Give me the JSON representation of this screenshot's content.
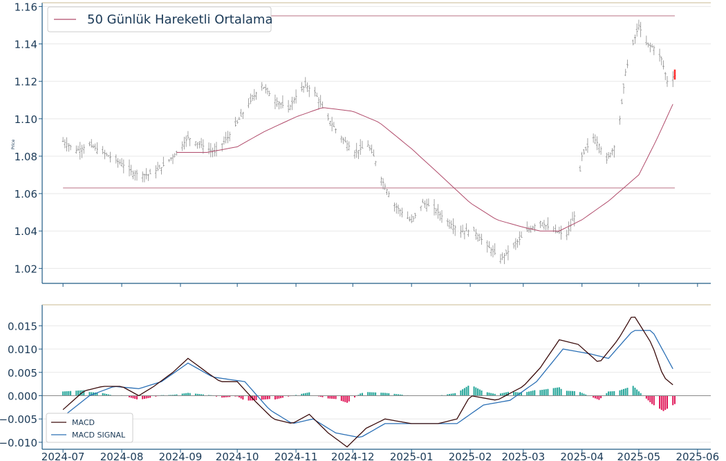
{
  "colors": {
    "axis": "#1f5a85",
    "tick_text": "#1b3a57",
    "top_border": "#c8b890",
    "grid": "#e8e8e8",
    "candle": "#8c8c8c",
    "candle_last": "#ff2a2a",
    "ma": "#b04a6a",
    "hline": "#c08090",
    "macd": "#3a0b0b",
    "signal": "#2a6fb5",
    "hist_pos": "#26a69a",
    "hist_neg": "#e0195a",
    "zero": "#888888"
  },
  "chart_data": [
    {
      "type": "ohlc",
      "ylabel": "Price",
      "ylim": [
        1.012,
        1.162
      ],
      "yticks": [
        "1.02",
        "1.04",
        "1.06",
        "1.08",
        "1.10",
        "1.12",
        "1.14",
        "1.16"
      ],
      "x_start": "2024-07-01",
      "x_end": "2025-05-20",
      "legend": {
        "position": "top-left",
        "entries": [
          "50 Günlük Hareketli Ortalama"
        ]
      },
      "horizontal_lines": [
        1.155,
        1.063
      ],
      "close_anchors": [
        [
          "2024-07-01",
          1.088
        ],
        [
          "2024-07-08",
          1.083
        ],
        [
          "2024-07-15",
          1.086
        ],
        [
          "2024-07-22",
          1.082
        ],
        [
          "2024-08-01",
          1.076
        ],
        [
          "2024-08-07",
          1.071
        ],
        [
          "2024-08-15",
          1.07
        ],
        [
          "2024-08-22",
          1.074
        ],
        [
          "2024-08-30",
          1.082
        ],
        [
          "2024-09-05",
          1.09
        ],
        [
          "2024-09-12",
          1.086
        ],
        [
          "2024-09-19",
          1.082
        ],
        [
          "2024-09-26",
          1.09
        ],
        [
          "2024-10-01",
          1.098
        ],
        [
          "2024-10-07",
          1.108
        ],
        [
          "2024-10-14",
          1.118
        ],
        [
          "2024-10-21",
          1.11
        ],
        [
          "2024-10-28",
          1.105
        ],
        [
          "2024-11-01",
          1.112
        ],
        [
          "2024-11-06",
          1.118
        ],
        [
          "2024-11-11",
          1.114
        ],
        [
          "2024-11-18",
          1.1
        ],
        [
          "2024-11-25",
          1.09
        ],
        [
          "2024-12-02",
          1.082
        ],
        [
          "2024-12-09",
          1.086
        ],
        [
          "2024-12-12",
          1.08
        ],
        [
          "2024-12-16",
          1.068
        ],
        [
          "2024-12-23",
          1.054
        ],
        [
          "2025-01-01",
          1.045
        ],
        [
          "2025-01-07",
          1.055
        ],
        [
          "2025-01-13",
          1.052
        ],
        [
          "2025-01-20",
          1.045
        ],
        [
          "2025-01-27",
          1.04
        ],
        [
          "2025-02-03",
          1.04
        ],
        [
          "2025-02-10",
          1.032
        ],
        [
          "2025-02-17",
          1.025
        ],
        [
          "2025-02-24",
          1.032
        ],
        [
          "2025-03-03",
          1.04
        ],
        [
          "2025-03-10",
          1.045
        ],
        [
          "2025-03-17",
          1.04
        ],
        [
          "2025-03-24",
          1.038
        ],
        [
          "2025-03-28",
          1.048
        ],
        [
          "2025-04-01",
          1.08
        ],
        [
          "2025-04-07",
          1.09
        ],
        [
          "2025-04-10",
          1.086
        ],
        [
          "2025-04-14",
          1.078
        ],
        [
          "2025-04-18",
          1.085
        ],
        [
          "2025-04-21",
          1.1
        ],
        [
          "2025-04-24",
          1.125
        ],
        [
          "2025-04-28",
          1.14
        ],
        [
          "2025-05-01",
          1.15
        ],
        [
          "2025-05-05",
          1.14
        ],
        [
          "2025-05-09",
          1.138
        ],
        [
          "2025-05-13",
          1.132
        ],
        [
          "2025-05-16",
          1.12
        ],
        [
          "2025-05-20",
          1.123
        ]
      ],
      "ma50_anchors": [
        [
          "2024-08-30",
          1.082
        ],
        [
          "2024-09-15",
          1.082
        ],
        [
          "2024-10-01",
          1.085
        ],
        [
          "2024-10-15",
          1.093
        ],
        [
          "2024-11-01",
          1.101
        ],
        [
          "2024-11-15",
          1.106
        ],
        [
          "2024-12-01",
          1.104
        ],
        [
          "2024-12-15",
          1.098
        ],
        [
          "2025-01-01",
          1.084
        ],
        [
          "2025-01-15",
          1.071
        ],
        [
          "2025-02-01",
          1.055
        ],
        [
          "2025-02-15",
          1.046
        ],
        [
          "2025-03-01",
          1.042
        ],
        [
          "2025-03-10",
          1.04
        ],
        [
          "2025-03-20",
          1.04
        ],
        [
          "2025-04-01",
          1.046
        ],
        [
          "2025-04-15",
          1.056
        ],
        [
          "2025-05-01",
          1.07
        ],
        [
          "2025-05-10",
          1.088
        ],
        [
          "2025-05-20",
          1.11
        ]
      ]
    },
    {
      "type": "macd",
      "ylim": [
        -0.0115,
        0.0195
      ],
      "yticks": [
        "−0.010",
        "−0.005",
        "0.000",
        "0.005",
        "0.010",
        "0.015"
      ],
      "ytick_values": [
        -0.01,
        -0.005,
        0,
        0.005,
        0.01,
        0.015
      ],
      "xticks": [
        "2024-07",
        "2024-08",
        "2024-09",
        "2024-10",
        "2024-11",
        "2024-12",
        "2025-01",
        "2025-02",
        "2025-03",
        "2025-04",
        "2025-05",
        "2025-06"
      ],
      "xtick_dates": [
        "2024-07-01",
        "2024-08-01",
        "2024-09-01",
        "2024-10-01",
        "2024-11-01",
        "2024-12-01",
        "2025-01-01",
        "2025-02-01",
        "2025-03-01",
        "2025-04-01",
        "2025-05-01",
        "2025-06-01"
      ],
      "legend": {
        "position": "bottom-left",
        "entries": [
          "MACD",
          "MACD SIGNAL"
        ]
      },
      "macd_anchors": [
        [
          "2024-07-01",
          -0.003
        ],
        [
          "2024-07-12",
          0.001
        ],
        [
          "2024-07-22",
          0.002
        ],
        [
          "2024-08-01",
          0.002
        ],
        [
          "2024-08-10",
          0.0
        ],
        [
          "2024-08-18",
          0.002
        ],
        [
          "2024-08-28",
          0.005
        ],
        [
          "2024-09-05",
          0.008
        ],
        [
          "2024-09-15",
          0.005
        ],
        [
          "2024-09-22",
          0.003
        ],
        [
          "2024-10-01",
          0.003
        ],
        [
          "2024-10-10",
          -0.001
        ],
        [
          "2024-10-20",
          -0.005
        ],
        [
          "2024-10-30",
          -0.006
        ],
        [
          "2024-11-08",
          -0.004
        ],
        [
          "2024-11-18",
          -0.008
        ],
        [
          "2024-11-28",
          -0.011
        ],
        [
          "2024-12-08",
          -0.007
        ],
        [
          "2024-12-18",
          -0.005
        ],
        [
          "2025-01-01",
          -0.006
        ],
        [
          "2025-01-15",
          -0.006
        ],
        [
          "2025-01-25",
          -0.005
        ],
        [
          "2025-02-01",
          0.0
        ],
        [
          "2025-02-15",
          -0.001
        ],
        [
          "2025-03-01",
          0.002
        ],
        [
          "2025-03-10",
          0.006
        ],
        [
          "2025-03-20",
          0.012
        ],
        [
          "2025-03-30",
          0.011
        ],
        [
          "2025-04-10",
          0.007
        ],
        [
          "2025-04-20",
          0.012
        ],
        [
          "2025-04-28",
          0.0175
        ],
        [
          "2025-05-08",
          0.011
        ],
        [
          "2025-05-14",
          0.004
        ],
        [
          "2025-05-20",
          0.002
        ]
      ],
      "signal_anchors": [
        [
          "2024-07-01",
          -0.0045
        ],
        [
          "2024-07-15",
          0.0
        ],
        [
          "2024-07-28",
          0.002
        ],
        [
          "2024-08-10",
          0.0015
        ],
        [
          "2024-08-22",
          0.003
        ],
        [
          "2024-09-05",
          0.007
        ],
        [
          "2024-09-18",
          0.004
        ],
        [
          "2024-10-05",
          0.003
        ],
        [
          "2024-10-18",
          -0.003
        ],
        [
          "2024-10-30",
          -0.006
        ],
        [
          "2024-11-10",
          -0.005
        ],
        [
          "2024-11-22",
          -0.008
        ],
        [
          "2024-12-05",
          -0.009
        ],
        [
          "2024-12-18",
          -0.006
        ],
        [
          "2025-01-05",
          -0.006
        ],
        [
          "2025-01-25",
          -0.006
        ],
        [
          "2025-02-08",
          -0.002
        ],
        [
          "2025-02-22",
          -0.001
        ],
        [
          "2025-03-08",
          0.003
        ],
        [
          "2025-03-22",
          0.01
        ],
        [
          "2025-04-05",
          0.009
        ],
        [
          "2025-04-15",
          0.008
        ],
        [
          "2025-04-28",
          0.014
        ],
        [
          "2025-05-08",
          0.014
        ],
        [
          "2025-05-20",
          0.005
        ]
      ]
    }
  ]
}
